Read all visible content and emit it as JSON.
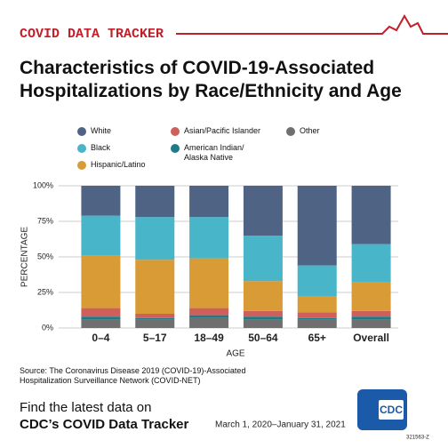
{
  "chart_data": {
    "type": "stacked_bar",
    "banner": "COVID DATA TRACKER",
    "title": "Characteristics of COVID-19-Associated\nHospitalizations by Race/Ethnicity and Age",
    "x_label": "AGE",
    "y_label": "PERCENTAGE",
    "categories": [
      "0–4",
      "5–17",
      "18–49",
      "50–64",
      "65+",
      "Overall"
    ],
    "series": [
      {
        "name": "White",
        "color": "#4f6385",
        "values": [
          21,
          22,
          22,
          35,
          56,
          41
        ]
      },
      {
        "name": "Black",
        "color": "#48b6c8",
        "values": [
          28,
          30,
          29,
          32,
          22,
          27
        ]
      },
      {
        "name": "Hispanic/Latino",
        "color": "#d89b35",
        "values": [
          37,
          38,
          35,
          21,
          11,
          20
        ]
      },
      {
        "name": "Asian/Pacific Islander",
        "color": "#cf5f5a",
        "values": [
          6,
          3,
          5,
          4,
          4,
          4
        ]
      },
      {
        "name": "American Indian/\nAlaska Native",
        "color": "#1d7b88",
        "values": [
          2,
          1,
          2,
          2,
          1,
          2
        ]
      },
      {
        "name": "Other",
        "color": "#6f6f6f",
        "values": [
          6,
          6,
          7,
          6,
          6,
          6
        ]
      }
    ],
    "ylim": [
      0,
      100
    ],
    "yticks": [
      {
        "value": 0,
        "label": "0%"
      },
      {
        "value": 25,
        "label": "25%"
      },
      {
        "value": 50,
        "label": "50%"
      },
      {
        "value": 75,
        "label": "75%"
      },
      {
        "value": 100,
        "label": "100%"
      }
    ],
    "grid": true,
    "source": "Source: The Coronavirus Disease 2019 (COVID-19)-Associated\nHospitalization Surveillance Network (COVID-NET)",
    "cta": "Find the latest data on",
    "cta_bold": "CDC’s COVID Data Tracker",
    "date_range": "March 1, 2020–January 31, 2021",
    "logo": "CDC",
    "code": "321563-Z"
  }
}
